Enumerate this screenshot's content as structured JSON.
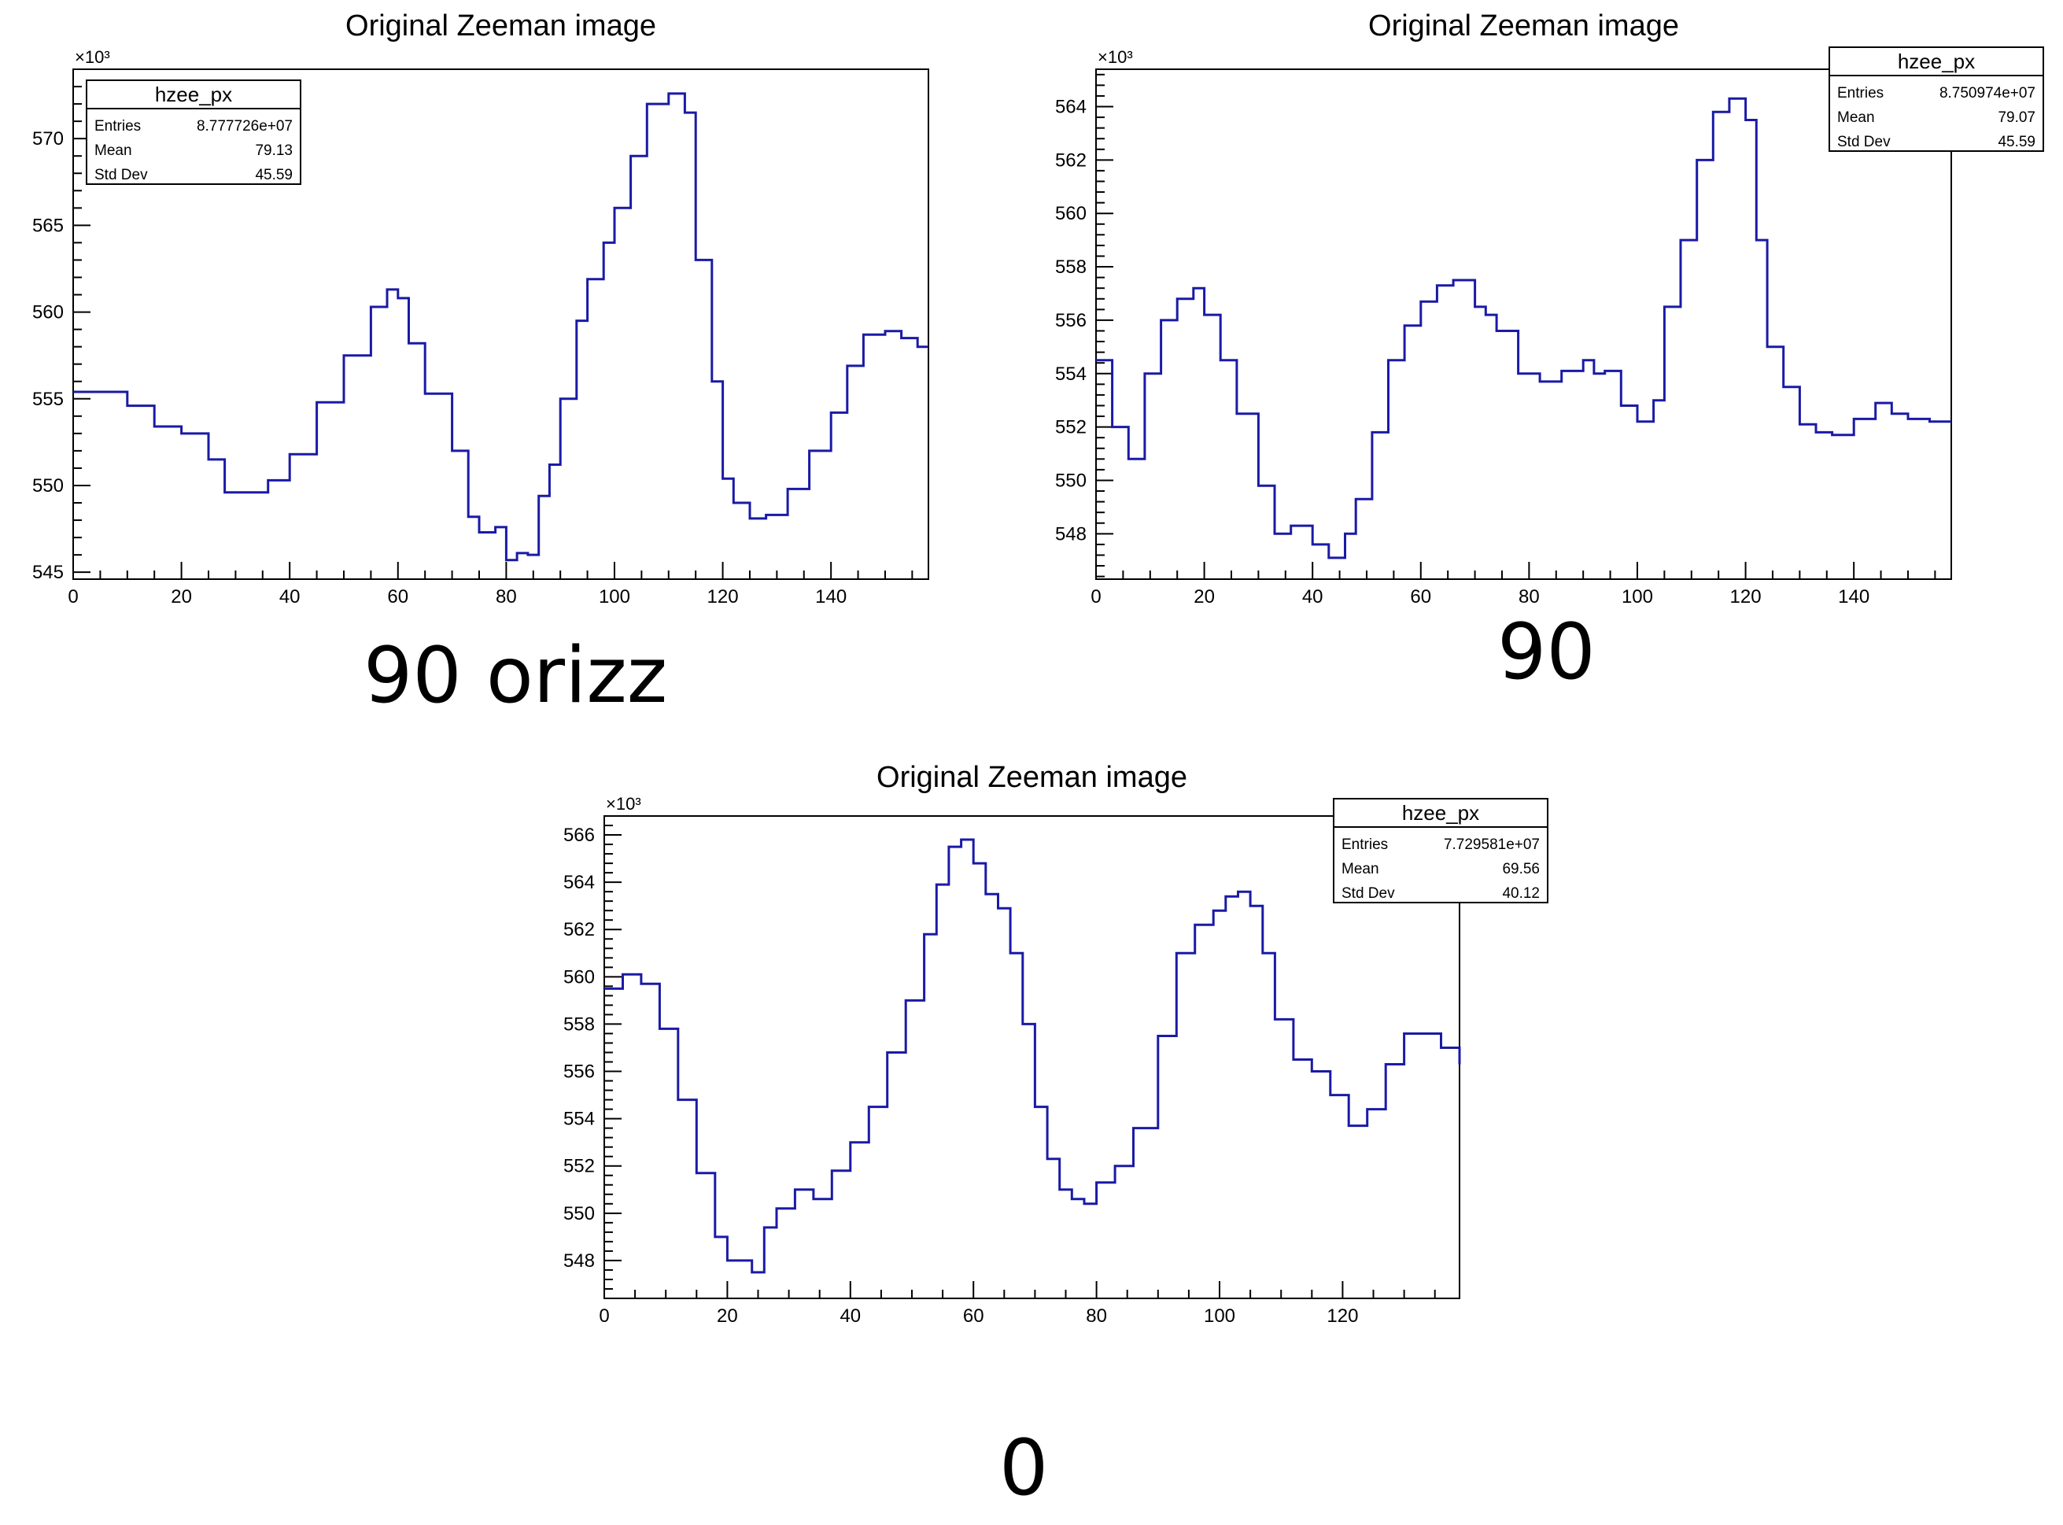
{
  "panels": [
    {
      "caption": "90 orizz",
      "chart_data": {
        "type": "histogram-step",
        "title": "Original Zeeman image",
        "xlabel": "",
        "ylabel": "",
        "y_multiplier": "×10³",
        "xlim": [
          0,
          158
        ],
        "ylim": [
          544.6,
          574
        ],
        "xticks": [
          0,
          20,
          40,
          60,
          80,
          100,
          120,
          140
        ],
        "yticks": [
          545,
          550,
          555,
          560,
          565,
          570
        ],
        "line_color": "#1a1aa6",
        "stats": {
          "name": "hzee_px",
          "rows": [
            {
              "label": "Entries",
              "value": "8.777726e+07"
            },
            {
              "label": "Mean",
              "value": "79.13"
            },
            {
              "label": "Std Dev",
              "value": "45.59"
            }
          ]
        },
        "legend_position": "top-left",
        "x": [
          0,
          5,
          10,
          15,
          20,
          25,
          28,
          32,
          36,
          40,
          45,
          50,
          55,
          58,
          60,
          62,
          65,
          68,
          70,
          73,
          75,
          78,
          80,
          82,
          84,
          86,
          88,
          90,
          93,
          95,
          98,
          100,
          103,
          106,
          110,
          113,
          115,
          118,
          120,
          122,
          125,
          128,
          132,
          136,
          140,
          143,
          146,
          150,
          153,
          156,
          158
        ],
        "y": [
          555.4,
          555.4,
          554.6,
          553.4,
          553.0,
          551.5,
          549.6,
          549.6,
          550.3,
          551.8,
          554.8,
          557.5,
          560.3,
          561.3,
          560.8,
          558.2,
          555.3,
          555.3,
          552.0,
          548.2,
          547.3,
          547.6,
          545.7,
          546.1,
          546.0,
          549.4,
          551.2,
          555.0,
          559.5,
          561.9,
          564.0,
          566.0,
          569.0,
          572.0,
          572.6,
          571.5,
          563.0,
          556.0,
          550.4,
          549.0,
          548.1,
          548.3,
          549.8,
          552.0,
          554.2,
          556.9,
          558.7,
          558.9,
          558.5,
          558.0,
          558.0
        ]
      }
    },
    {
      "caption": "90",
      "chart_data": {
        "type": "histogram-step",
        "title": "Original Zeeman image",
        "xlabel": "",
        "ylabel": "",
        "y_multiplier": "×10³",
        "xlim": [
          0,
          158
        ],
        "ylim": [
          546.3,
          565.4
        ],
        "xticks": [
          0,
          20,
          40,
          60,
          80,
          100,
          120,
          140
        ],
        "yticks": [
          548,
          550,
          552,
          554,
          556,
          558,
          560,
          562,
          564
        ],
        "line_color": "#1a1aa6",
        "stats": {
          "name": "hzee_px",
          "rows": [
            {
              "label": "Entries",
              "value": "8.750974e+07"
            },
            {
              "label": "Mean",
              "value": "79.07"
            },
            {
              "label": "Std Dev",
              "value": "45.59"
            }
          ]
        },
        "legend_position": "top-right",
        "x": [
          0,
          3,
          6,
          9,
          12,
          15,
          18,
          20,
          23,
          26,
          30,
          33,
          36,
          40,
          43,
          46,
          48,
          51,
          54,
          57,
          60,
          63,
          66,
          68,
          70,
          72,
          74,
          78,
          82,
          86,
          90,
          92,
          94,
          97,
          100,
          103,
          105,
          108,
          111,
          114,
          117,
          120,
          122,
          124,
          127,
          130,
          133,
          136,
          140,
          144,
          147,
          150,
          154,
          158
        ],
        "y": [
          554.5,
          552.0,
          550.8,
          554.0,
          556.0,
          556.8,
          557.2,
          556.2,
          554.5,
          552.5,
          549.8,
          548.0,
          548.3,
          547.6,
          547.1,
          548.0,
          549.3,
          551.8,
          554.5,
          555.8,
          556.7,
          557.3,
          557.5,
          557.5,
          556.5,
          556.2,
          555.6,
          554.0,
          553.7,
          554.1,
          554.5,
          554.0,
          554.1,
          552.8,
          552.2,
          553.0,
          556.5,
          559.0,
          562.0,
          563.8,
          564.3,
          563.5,
          559.0,
          555.0,
          553.5,
          552.1,
          551.8,
          551.7,
          552.3,
          552.9,
          552.5,
          552.3,
          552.2,
          552.2
        ]
      }
    },
    {
      "caption": "0",
      "chart_data": {
        "type": "histogram-step",
        "title": "Original Zeeman image",
        "xlabel": "",
        "ylabel": "",
        "y_multiplier": "×10³",
        "xlim": [
          0,
          139
        ],
        "ylim": [
          546.4,
          566.8
        ],
        "xticks": [
          0,
          20,
          40,
          60,
          80,
          100,
          120
        ],
        "yticks": [
          548,
          550,
          552,
          554,
          556,
          558,
          560,
          562,
          564,
          566
        ],
        "line_color": "#1a1aa6",
        "stats": {
          "name": "hzee_px",
          "rows": [
            {
              "label": "Entries",
              "value": "7.729581e+07"
            },
            {
              "label": "Mean",
              "value": "69.56"
            },
            {
              "label": "Std Dev",
              "value": "40.12"
            }
          ]
        },
        "legend_position": "top-right",
        "x": [
          0,
          3,
          6,
          9,
          12,
          15,
          18,
          20,
          22,
          24,
          26,
          28,
          31,
          34,
          37,
          40,
          43,
          46,
          49,
          52,
          54,
          56,
          58,
          60,
          62,
          64,
          66,
          68,
          70,
          72,
          74,
          76,
          78,
          80,
          83,
          86,
          90,
          93,
          96,
          99,
          101,
          103,
          105,
          107,
          109,
          112,
          115,
          118,
          121,
          124,
          127,
          130,
          133,
          136,
          139
        ],
        "y": [
          559.5,
          560.1,
          559.7,
          557.8,
          554.8,
          551.7,
          549.0,
          548.0,
          548.0,
          547.5,
          549.4,
          550.2,
          551.0,
          550.6,
          551.8,
          553.0,
          554.5,
          556.8,
          559.0,
          561.8,
          563.9,
          565.5,
          565.8,
          564.8,
          563.5,
          562.9,
          561.0,
          558.0,
          554.5,
          552.3,
          551.0,
          550.6,
          550.4,
          551.3,
          552.0,
          553.6,
          557.5,
          561.0,
          562.2,
          562.8,
          563.4,
          563.6,
          563.0,
          561.0,
          558.2,
          556.5,
          556.0,
          555.0,
          553.7,
          554.4,
          556.3,
          557.6,
          557.6,
          557.0,
          556.3
        ]
      }
    }
  ]
}
